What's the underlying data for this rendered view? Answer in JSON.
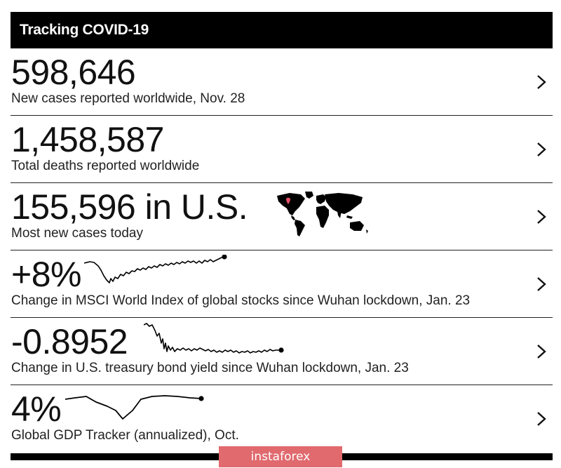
{
  "header": {
    "title": "Tracking COVID-19"
  },
  "rows": [
    {
      "value": "598,646",
      "label": "New cases reported worldwide, Nov. 28"
    },
    {
      "value": "1,458,587",
      "label": "Total deaths reported worldwide"
    },
    {
      "value": "155,596 in U.S.",
      "label": "Most new cases today"
    },
    {
      "value": "+8%",
      "label": "Change in MSCI World Index of global stocks since Wuhan lockdown, Jan. 23"
    },
    {
      "value": "-0.8952",
      "label": "Change in U.S. treasury bond yield since Wuhan lockdown, Jan. 23"
    },
    {
      "value": "4%",
      "label": "Global GDP Tracker (annualized), Oct."
    }
  ],
  "icons": {
    "row_arrow": "chevron-right-icon",
    "map": "world-map-icon",
    "map_marker": "map-pin-icon"
  },
  "colors": {
    "accent_marker": "#e8506a",
    "watermark_bg": "#e06a6e"
  },
  "watermark": {
    "text": "instaforex"
  }
}
